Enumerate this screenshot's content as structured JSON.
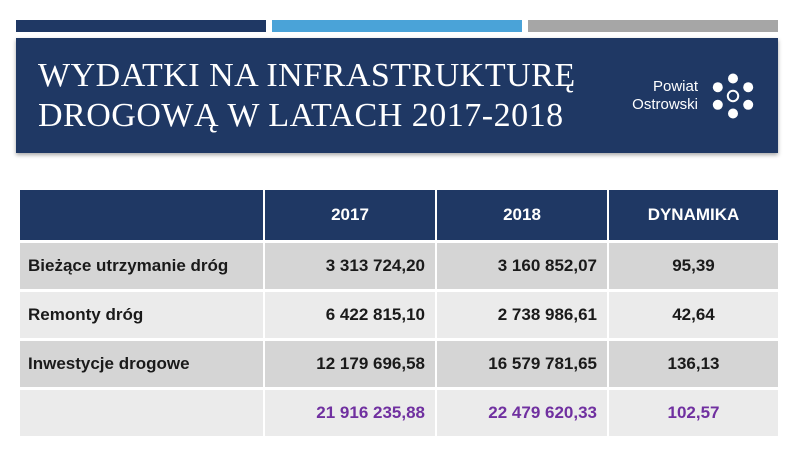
{
  "title_lines": [
    "WYDATKI NA INFRASTRUKTURĘ",
    "DROGOWĄ W LATACH 2017-2018"
  ],
  "logo": {
    "line1": "Powiat",
    "line2": "Ostrowski",
    "icon": "flower-dots-icon"
  },
  "colors": {
    "navy": "#1f3864",
    "accent_blue": "#4aa3d8",
    "accent_gray": "#a6a6a6",
    "total_purple": "#7030a0"
  },
  "table": {
    "headers": [
      "",
      "2017",
      "2018",
      "DYNAMIKA"
    ],
    "rows": [
      {
        "label": "Bieżące utrzymanie dróg",
        "v2017": "3 313 724,20",
        "v2018": "3 160 852,07",
        "dynamika": "95,39"
      },
      {
        "label": "Remonty dróg",
        "v2017": "6 422 815,10",
        "v2018": "2 738 986,61",
        "dynamika": "42,64"
      },
      {
        "label": "Inwestycje drogowe",
        "v2017": "12 179 696,58",
        "v2018": "16 579 781,65",
        "dynamika": "136,13"
      }
    ],
    "total": {
      "label": "",
      "v2017": "21 916 235,88",
      "v2018": "22 479 620,33",
      "dynamika": "102,57"
    }
  }
}
